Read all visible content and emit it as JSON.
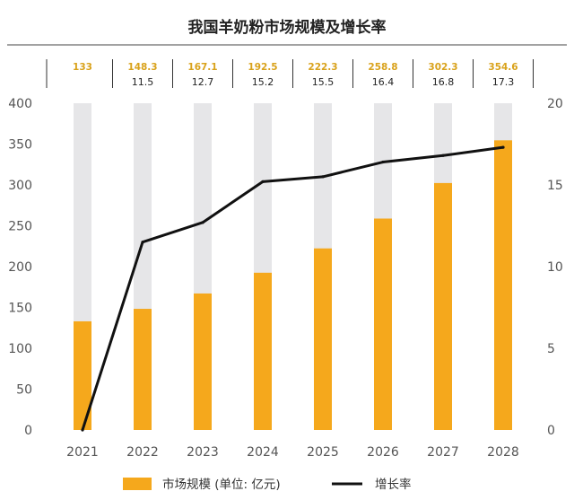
{
  "chart_data": {
    "type": "bar+line",
    "title": "我国羊奶粉市场规模及增长率",
    "categories": [
      "2021",
      "2022",
      "2023",
      "2024",
      "2025",
      "2026",
      "2027",
      "2028"
    ],
    "series": [
      {
        "name": "市场规模 (单位: 亿元)",
        "type": "bar",
        "axis": "left",
        "color": "#F5A81C",
        "values": [
          133,
          148.3,
          167.1,
          192.5,
          222.3,
          258.8,
          302.3,
          354.6
        ]
      },
      {
        "name": "增长率",
        "type": "line",
        "axis": "right",
        "color": "#111111",
        "values": [
          0,
          11.5,
          12.7,
          15.2,
          15.5,
          16.4,
          16.8,
          17.3
        ]
      }
    ],
    "header_rows": {
      "market_size_labels": [
        "133",
        "148.3",
        "167.1",
        "192.5",
        "222.3",
        "258.8",
        "302.3",
        "354.6"
      ],
      "growth_labels": [
        "",
        "11.5",
        "12.7",
        "15.2",
        "15.5",
        "16.4",
        "16.8",
        "17.3"
      ]
    },
    "y_left": {
      "min": 0,
      "max": 400,
      "ticks": [
        0,
        50,
        100,
        150,
        200,
        250,
        300,
        350,
        400
      ]
    },
    "y_right": {
      "min": 0,
      "max": 20,
      "ticks": [
        0,
        5,
        10,
        15,
        20
      ]
    },
    "background_bar_value": 400,
    "grid": false,
    "legend_position": "bottom",
    "colors": {
      "bar": "#F5A81C",
      "bar_background": "#E6E6E8",
      "line": "#111111",
      "header_highlight": "#D9A21B",
      "axis_text": "#555555"
    }
  }
}
